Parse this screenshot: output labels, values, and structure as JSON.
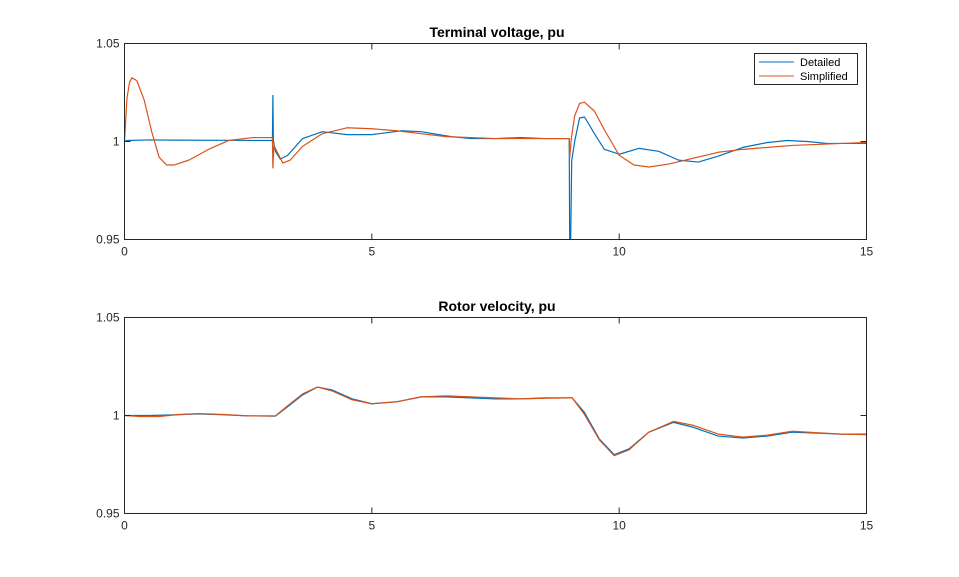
{
  "colors": {
    "axis": "#262626",
    "detailed": "#0072BD",
    "simplified": "#D95319",
    "background": "#ffffff"
  },
  "chart_data": [
    {
      "type": "line",
      "title": "Terminal voltage, pu",
      "xlabel": "",
      "ylabel": "",
      "xlim": [
        0,
        15
      ],
      "ylim": [
        0.95,
        1.05
      ],
      "xticks": [
        "0",
        "5",
        "10",
        "15"
      ],
      "yticks": [
        "0.95",
        "1",
        "1.05"
      ],
      "grid": false,
      "legend_position": "top-right",
      "series": [
        {
          "name": "Detailed",
          "color": "#0072BD",
          "points": [
            [
              0,
              1.0
            ],
            [
              0.05,
              1.0005
            ],
            [
              0.5,
              1.0008
            ],
            [
              1,
              1.0007
            ],
            [
              2,
              1.0006
            ],
            [
              2.99,
              1.0005
            ],
            [
              3.0,
              1.0235
            ],
            [
              3.01,
              1.0005
            ],
            [
              3.05,
              0.995
            ],
            [
              3.15,
              0.991
            ],
            [
              3.3,
              0.993
            ],
            [
              3.6,
              1.0015
            ],
            [
              4.0,
              1.005
            ],
            [
              4.5,
              1.0035
            ],
            [
              5.0,
              1.0035
            ],
            [
              5.6,
              1.0055
            ],
            [
              6.0,
              1.005
            ],
            [
              6.6,
              1.0025
            ],
            [
              7.0,
              1.0015
            ],
            [
              7.5,
              1.0015
            ],
            [
              8.0,
              1.002
            ],
            [
              8.5,
              1.0015
            ],
            [
              8.99,
              1.0015
            ],
            [
              9.0,
              0.95
            ],
            [
              9.02,
              0.95
            ],
            [
              9.04,
              0.99
            ],
            [
              9.1,
              1.0
            ],
            [
              9.2,
              1.012
            ],
            [
              9.3,
              1.0125
            ],
            [
              9.5,
              1.004
            ],
            [
              9.7,
              0.996
            ],
            [
              10.0,
              0.9935
            ],
            [
              10.4,
              0.9965
            ],
            [
              10.8,
              0.995
            ],
            [
              11.2,
              0.9905
            ],
            [
              11.6,
              0.9895
            ],
            [
              12.0,
              0.9925
            ],
            [
              12.5,
              0.997
            ],
            [
              13.0,
              0.9995
            ],
            [
              13.4,
              1.0005
            ],
            [
              13.8,
              1.0
            ],
            [
              14.2,
              0.999
            ],
            [
              14.6,
              0.999
            ],
            [
              15.0,
              0.999
            ]
          ]
        },
        {
          "name": "Simplified",
          "color": "#D95319",
          "points": [
            [
              0,
              1.0
            ],
            [
              0.05,
              1.022
            ],
            [
              0.1,
              1.03
            ],
            [
              0.15,
              1.0325
            ],
            [
              0.25,
              1.031
            ],
            [
              0.4,
              1.021
            ],
            [
              0.55,
              1.005
            ],
            [
              0.7,
              0.992
            ],
            [
              0.85,
              0.988
            ],
            [
              1.0,
              0.988
            ],
            [
              1.3,
              0.9905
            ],
            [
              1.7,
              0.996
            ],
            [
              2.1,
              1.0005
            ],
            [
              2.6,
              1.002
            ],
            [
              2.99,
              1.002
            ],
            [
              3.0,
              0.9865
            ],
            [
              3.02,
              0.998
            ],
            [
              3.08,
              0.995
            ],
            [
              3.2,
              0.989
            ],
            [
              3.35,
              0.9905
            ],
            [
              3.6,
              0.9975
            ],
            [
              4.0,
              1.004
            ],
            [
              4.5,
              1.007
            ],
            [
              5.0,
              1.0065
            ],
            [
              5.5,
              1.0055
            ],
            [
              6.0,
              1.004
            ],
            [
              6.5,
              1.0025
            ],
            [
              7.0,
              1.002
            ],
            [
              7.5,
              1.0015
            ],
            [
              8.0,
              1.0015
            ],
            [
              8.5,
              1.0015
            ],
            [
              8.99,
              1.0015
            ],
            [
              9.0,
              0.9915
            ],
            [
              9.03,
              1.001
            ],
            [
              9.1,
              1.013
            ],
            [
              9.2,
              1.0195
            ],
            [
              9.3,
              1.02
            ],
            [
              9.5,
              1.0155
            ],
            [
              9.7,
              1.006
            ],
            [
              10.0,
              0.993
            ],
            [
              10.3,
              0.988
            ],
            [
              10.6,
              0.987
            ],
            [
              11.0,
              0.9885
            ],
            [
              11.5,
              0.9915
            ],
            [
              12.0,
              0.9945
            ],
            [
              12.5,
              0.996
            ],
            [
              13.0,
              0.997
            ],
            [
              13.5,
              0.998
            ],
            [
              14.0,
              0.9985
            ],
            [
              14.5,
              0.999
            ],
            [
              15.0,
              0.9995
            ]
          ]
        }
      ]
    },
    {
      "type": "line",
      "title": "Rotor velocity, pu",
      "xlabel": "",
      "ylabel": "",
      "xlim": [
        0,
        15
      ],
      "ylim": [
        0.95,
        1.05
      ],
      "xticks": [
        "0",
        "5",
        "10",
        "15"
      ],
      "yticks": [
        "0.95",
        "1",
        "1.05"
      ],
      "grid": false,
      "series": [
        {
          "name": "Detailed",
          "color": "#0072BD",
          "points": [
            [
              0,
              1.0
            ],
            [
              0.5,
              1.0
            ],
            [
              1.0,
              1.0003
            ],
            [
              1.5,
              1.0008
            ],
            [
              2.0,
              1.0004
            ],
            [
              2.5,
              0.9998
            ],
            [
              3.0,
              0.9997
            ],
            [
              3.05,
              0.9997
            ],
            [
              3.3,
              1.0045
            ],
            [
              3.6,
              1.0105
            ],
            [
              3.9,
              1.0145
            ],
            [
              4.2,
              1.013
            ],
            [
              4.6,
              1.0085
            ],
            [
              5.0,
              1.006
            ],
            [
              5.5,
              1.007
            ],
            [
              6.0,
              1.0095
            ],
            [
              6.5,
              1.0095
            ],
            [
              7.0,
              1.009
            ],
            [
              7.5,
              1.0085
            ],
            [
              8.0,
              1.0085
            ],
            [
              8.5,
              1.009
            ],
            [
              9.0,
              1.009
            ],
            [
              9.05,
              1.009
            ],
            [
              9.3,
              1.0015
            ],
            [
              9.6,
              0.988
            ],
            [
              9.9,
              0.98
            ],
            [
              10.2,
              0.983
            ],
            [
              10.6,
              0.9915
            ],
            [
              11.1,
              0.9965
            ],
            [
              11.5,
              0.994
            ],
            [
              12.0,
              0.9895
            ],
            [
              12.5,
              0.9885
            ],
            [
              13.0,
              0.9895
            ],
            [
              13.5,
              0.9915
            ],
            [
              14.0,
              0.991
            ],
            [
              14.5,
              0.9905
            ],
            [
              15.0,
              0.9905
            ]
          ]
        },
        {
          "name": "Simplified",
          "color": "#D95319",
          "points": [
            [
              0,
              1.0
            ],
            [
              0.3,
              0.9995
            ],
            [
              0.7,
              0.9995
            ],
            [
              1.1,
              1.0005
            ],
            [
              1.5,
              1.001
            ],
            [
              2.0,
              1.0005
            ],
            [
              2.5,
              0.9998
            ],
            [
              3.0,
              0.9998
            ],
            [
              3.05,
              0.9998
            ],
            [
              3.3,
              1.005
            ],
            [
              3.6,
              1.011
            ],
            [
              3.9,
              1.0145
            ],
            [
              4.2,
              1.0125
            ],
            [
              4.6,
              1.008
            ],
            [
              5.0,
              1.006
            ],
            [
              5.5,
              1.007
            ],
            [
              6.0,
              1.0095
            ],
            [
              6.5,
              1.01
            ],
            [
              7.0,
              1.0095
            ],
            [
              7.5,
              1.009
            ],
            [
              8.0,
              1.0085
            ],
            [
              8.5,
              1.0088
            ],
            [
              9.0,
              1.009
            ],
            [
              9.05,
              1.009
            ],
            [
              9.3,
              1.0005
            ],
            [
              9.6,
              0.9875
            ],
            [
              9.9,
              0.9795
            ],
            [
              10.2,
              0.9825
            ],
            [
              10.6,
              0.9915
            ],
            [
              11.1,
              0.997
            ],
            [
              11.5,
              0.995
            ],
            [
              12.0,
              0.9905
            ],
            [
              12.5,
              0.989
            ],
            [
              13.0,
              0.99
            ],
            [
              13.5,
              0.992
            ],
            [
              14.0,
              0.9912
            ],
            [
              14.5,
              0.9905
            ],
            [
              15.0,
              0.9902
            ]
          ]
        }
      ]
    }
  ]
}
